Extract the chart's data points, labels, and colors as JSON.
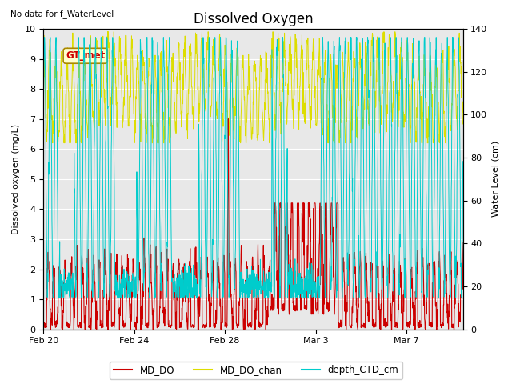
{
  "title": "Dissolved Oxygen",
  "top_left_text": "No data for f_WaterLevel",
  "ylabel_left": "Dissolved oxygen (mg/L)",
  "ylabel_right": "Water Level (cm)",
  "ylim_left": [
    0.0,
    10.0
  ],
  "ylim_right": [
    0,
    140
  ],
  "yticks_left": [
    0.0,
    1.0,
    2.0,
    3.0,
    4.0,
    5.0,
    6.0,
    7.0,
    8.0,
    9.0,
    10.0
  ],
  "yticks_right": [
    0,
    20,
    40,
    60,
    80,
    100,
    120,
    140
  ],
  "xtick_labels": [
    "Feb 20",
    "Feb 24",
    "Feb 28",
    "Mar 3",
    "Mar 7"
  ],
  "color_MD_DO": "#cc0000",
  "color_MD_DO_chan": "#dddd00",
  "color_depth_CTD_cm": "#00cccc",
  "legend_labels": [
    "MD_DO",
    "MD_DO_chan",
    "depth_CTD_cm"
  ],
  "annotation_text": "GT_met",
  "annotation_color": "#cc0000",
  "annotation_bg": "#ffffcc",
  "plot_bg_color": "#e8e8e8",
  "grid_color": "#ffffff",
  "title_fontsize": 12,
  "label_fontsize": 8,
  "tick_fontsize": 8
}
